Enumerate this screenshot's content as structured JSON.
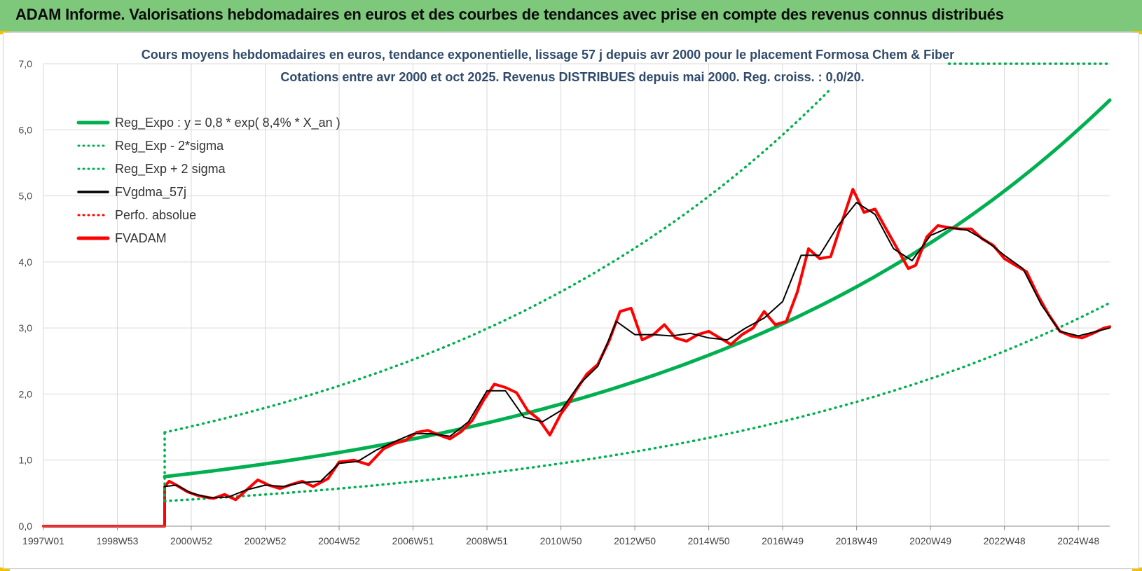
{
  "header": {
    "title": "ADAM Informe. Valorisations hebdomadaires en euros et des courbes de tendances avec prise en compte des revenus connus distribués"
  },
  "colors": {
    "banner": "#7ec87c",
    "green": "#00b050",
    "red": "#ff0000",
    "black": "#000000"
  },
  "chart_data": {
    "type": "line",
    "title_line1": "Cours moyens hebdomadaires en euros, tendance exponentielle, lissage 57 j depuis avr 2000 pour le placement Formosa Chem & Fiber",
    "title_line2": "Cotations entre avr 2000 et oct 2025. Revenus DISTRIBUES depuis mai 2000. Reg. croiss. : 0,0/20.",
    "xlim": [
      1997.0,
      2025.85
    ],
    "ylim": [
      0,
      7
    ],
    "y_ticks": [
      "0,0",
      "1,0",
      "2,0",
      "3,0",
      "4,0",
      "5,0",
      "6,0",
      "7,0"
    ],
    "x_ticks": [
      {
        "label": "1997W01",
        "x": 1997.0
      },
      {
        "label": "1998W53",
        "x": 1999.0
      },
      {
        "label": "2000W52",
        "x": 2001.0
      },
      {
        "label": "2002W52",
        "x": 2003.0
      },
      {
        "label": "2004W52",
        "x": 2005.0
      },
      {
        "label": "2006W51",
        "x": 2007.0
      },
      {
        "label": "2008W51",
        "x": 2009.0
      },
      {
        "label": "2010W50",
        "x": 2011.0
      },
      {
        "label": "2012W50",
        "x": 2013.0
      },
      {
        "label": "2014W50",
        "x": 2015.0
      },
      {
        "label": "2016W49",
        "x": 2017.0
      },
      {
        "label": "2018W49",
        "x": 2019.0
      },
      {
        "label": "2020W49",
        "x": 2021.0
      },
      {
        "label": "2022W48",
        "x": 2023.0
      },
      {
        "label": "2024W48",
        "x": 2025.0
      }
    ],
    "grid": true,
    "legend_position": "top-left",
    "legend": [
      {
        "name": "Reg_Expo : y = 0,8 * exp( 8,4% *  X_an )",
        "color": "#00b050",
        "style": "solid-thick"
      },
      {
        "name": "Reg_Exp - 2*sigma",
        "color": "#00b050",
        "style": "dotted"
      },
      {
        "name": "Reg_Exp + 2 sigma",
        "color": "#00b050",
        "style": "dotted"
      },
      {
        "name": "FVgdma_57j",
        "color": "#000000",
        "style": "solid"
      },
      {
        "name": "Perfo. absolue",
        "color": "#ff0000",
        "style": "dotted"
      },
      {
        "name": "FVADAM",
        "color": "#ff0000",
        "style": "solid-thick"
      }
    ],
    "series": [
      {
        "name": "FVADAM",
        "x": [
          1997.0,
          2000.28,
          2000.28,
          2000.4,
          2000.6,
          2000.9,
          2001.2,
          2001.6,
          2001.9,
          2002.2,
          2002.5,
          2002.8,
          2003.1,
          2003.4,
          2003.7,
          2004.0,
          2004.3,
          2004.7,
          2005.0,
          2005.4,
          2005.8,
          2006.2,
          2006.5,
          2006.8,
          2007.1,
          2007.4,
          2007.7,
          2008.0,
          2008.3,
          2008.6,
          2008.9,
          2009.2,
          2009.5,
          2009.8,
          2010.1,
          2010.4,
          2010.7,
          2011.0,
          2011.2,
          2011.4,
          2011.7,
          2012.0,
          2012.3,
          2012.6,
          2012.9,
          2013.2,
          2013.5,
          2013.8,
          2014.1,
          2014.4,
          2014.7,
          2015.0,
          2015.3,
          2015.6,
          2015.9,
          2016.2,
          2016.5,
          2016.8,
          2017.1,
          2017.4,
          2017.7,
          2018.0,
          2018.3,
          2018.6,
          2018.9,
          2019.2,
          2019.5,
          2019.8,
          2020.1,
          2020.4,
          2020.6,
          2020.9,
          2021.2,
          2021.5,
          2021.8,
          2022.1,
          2022.4,
          2022.7,
          2023.0,
          2023.3,
          2023.6,
          2023.9,
          2024.2,
          2024.5,
          2024.8,
          2025.1,
          2025.4,
          2025.7,
          2025.85
        ],
        "y": [
          0.0,
          0.0,
          0.6,
          0.68,
          0.62,
          0.52,
          0.46,
          0.42,
          0.48,
          0.4,
          0.55,
          0.7,
          0.62,
          0.57,
          0.63,
          0.68,
          0.6,
          0.72,
          0.97,
          1.0,
          0.93,
          1.17,
          1.25,
          1.3,
          1.42,
          1.45,
          1.38,
          1.32,
          1.43,
          1.6,
          1.9,
          2.15,
          2.1,
          2.02,
          1.75,
          1.62,
          1.38,
          1.7,
          1.85,
          2.05,
          2.3,
          2.45,
          2.8,
          3.25,
          3.3,
          2.82,
          2.9,
          3.05,
          2.85,
          2.8,
          2.9,
          2.95,
          2.85,
          2.75,
          2.9,
          3.0,
          3.25,
          3.05,
          3.1,
          3.55,
          4.2,
          4.05,
          4.08,
          4.6,
          5.1,
          4.75,
          4.8,
          4.5,
          4.2,
          3.9,
          3.95,
          4.38,
          4.55,
          4.52,
          4.5,
          4.5,
          4.35,
          4.25,
          4.05,
          3.95,
          3.85,
          3.5,
          3.2,
          2.95,
          2.88,
          2.85,
          2.92,
          3.0,
          3.02
        ]
      },
      {
        "name": "FVgdma_57j",
        "x": [
          2000.28,
          2000.6,
          2001.0,
          2001.5,
          2002.0,
          2002.5,
          2003.0,
          2003.5,
          2004.0,
          2004.5,
          2005.0,
          2005.5,
          2006.0,
          2006.5,
          2007.0,
          2007.5,
          2008.0,
          2008.5,
          2009.0,
          2009.5,
          2010.0,
          2010.5,
          2011.0,
          2011.5,
          2012.0,
          2012.5,
          2013.0,
          2013.5,
          2014.0,
          2014.5,
          2015.0,
          2015.5,
          2016.0,
          2016.5,
          2017.0,
          2017.5,
          2018.0,
          2018.5,
          2019.0,
          2019.5,
          2020.0,
          2020.5,
          2021.0,
          2021.5,
          2022.0,
          2022.5,
          2023.0,
          2023.5,
          2024.0,
          2024.5,
          2025.0,
          2025.5,
          2025.85
        ],
        "y": [
          0.6,
          0.62,
          0.5,
          0.43,
          0.44,
          0.55,
          0.62,
          0.6,
          0.66,
          0.68,
          0.95,
          0.98,
          1.15,
          1.28,
          1.4,
          1.4,
          1.36,
          1.58,
          2.05,
          2.05,
          1.65,
          1.58,
          1.75,
          2.15,
          2.42,
          3.1,
          2.9,
          2.9,
          2.88,
          2.92,
          2.85,
          2.82,
          3.0,
          3.15,
          3.4,
          4.1,
          4.1,
          4.55,
          4.9,
          4.72,
          4.2,
          4.02,
          4.4,
          4.52,
          4.48,
          4.32,
          4.1,
          3.9,
          3.35,
          2.95,
          2.88,
          2.95,
          3.0
        ]
      },
      {
        "name": "Reg_Expo : y = 0,8 * exp( 8,4% *  X_an )",
        "model": "exponential",
        "x": [
          2000.28,
          2025.85
        ],
        "y": [
          0.75,
          6.45
        ]
      },
      {
        "name": "Reg_Exp - 2*sigma",
        "model": "exponential",
        "x": [
          2000.28,
          2025.85
        ],
        "y": [
          0.38,
          3.38
        ]
      },
      {
        "name": "Reg_Exp + 2 sigma",
        "model": "exponential",
        "x": [
          2000.28,
          2018.3
        ],
        "y": [
          1.42,
          6.62
        ]
      },
      {
        "name": "Reg_Exp + 2 sigma (clipped)",
        "x": [
          2021.5,
          2025.85
        ],
        "y": [
          7.0,
          7.0
        ]
      }
    ]
  }
}
